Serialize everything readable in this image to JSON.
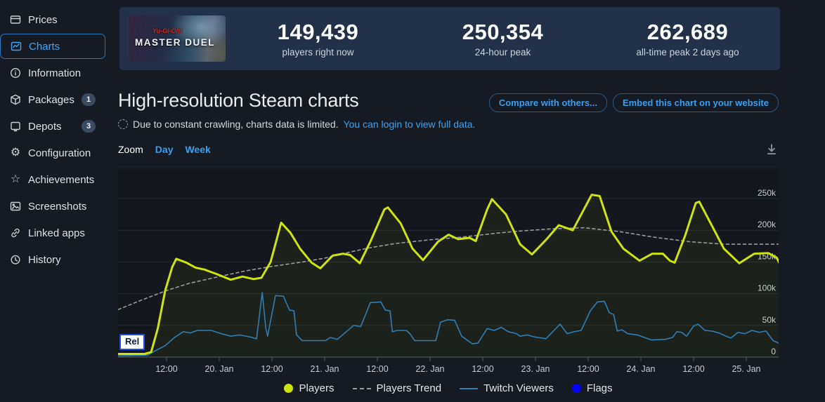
{
  "sidebar": {
    "items": [
      {
        "label": "Prices",
        "icon": "card-icon"
      },
      {
        "label": "Charts",
        "icon": "line-chart-icon",
        "selected": true
      },
      {
        "label": "Information",
        "icon": "info-icon"
      },
      {
        "label": "Packages",
        "icon": "package-icon",
        "badge": "1"
      },
      {
        "label": "Depots",
        "icon": "depot-icon",
        "badge": "3"
      },
      {
        "label": "Configuration",
        "icon": "gear-icon"
      },
      {
        "label": "Achievements",
        "icon": "star-icon"
      },
      {
        "label": "Screenshots",
        "icon": "image-icon"
      },
      {
        "label": "Linked apps",
        "icon": "link-icon"
      },
      {
        "label": "History",
        "icon": "history-icon"
      }
    ]
  },
  "statsbar": {
    "capsule": {
      "franchise": "Yu-Gi-Oh!",
      "title": "MASTER DUEL"
    },
    "stats": [
      {
        "value": "149,439",
        "label": "players right now"
      },
      {
        "value": "250,354",
        "label": "24-hour peak"
      },
      {
        "value": "262,689",
        "label": "all-time peak 2 days ago"
      }
    ]
  },
  "header": {
    "title": "High-resolution Steam charts",
    "buttons": [
      {
        "label": "Compare with others..."
      },
      {
        "label": "Embed this chart on your website"
      }
    ]
  },
  "notice": {
    "text": "Due to constant crawling, charts data is limited.",
    "link": "You can login to view full data."
  },
  "zoombar": {
    "label": "Zoom",
    "options": [
      {
        "label": "Day"
      },
      {
        "label": "Week"
      }
    ]
  },
  "colors": {
    "accent_link": "#36a0f2",
    "players": "#cee40f",
    "players_trend": "#9b9b9b",
    "twitch": "#2f7db3",
    "flags": "#0404fc",
    "statsbar_bg": "#223147",
    "page_bg": "#161a22",
    "plot_bg": "#14171d"
  },
  "chart_data": {
    "type": "line",
    "title": "High-resolution Steam charts",
    "x_unit": "hours (h) since 19. Jan 00:00, chart spans ~19. Jan 02:00 to 25. Jan 15:00",
    "values_unit": "thousands (k)",
    "ylim": [
      0,
      275
    ],
    "grid": true,
    "legend_position": "bottom",
    "x_ticks": [
      {
        "h": 12,
        "label": "12:00"
      },
      {
        "h": 24,
        "label": "20. Jan"
      },
      {
        "h": 36,
        "label": "12:00"
      },
      {
        "h": 48,
        "label": "21. Jan"
      },
      {
        "h": 60,
        "label": "12:00"
      },
      {
        "h": 72,
        "label": "22. Jan"
      },
      {
        "h": 84,
        "label": "12:00"
      },
      {
        "h": 96,
        "label": "23. Jan"
      },
      {
        "h": 108,
        "label": "12:00"
      },
      {
        "h": 120,
        "label": "24. Jan"
      },
      {
        "h": 132,
        "label": "12:00"
      },
      {
        "h": 144,
        "label": "25. Jan"
      }
    ],
    "y_ticks": [
      {
        "v": 0,
        "label": "0"
      },
      {
        "v": 50,
        "label": "50k"
      },
      {
        "v": 100,
        "label": "100k"
      },
      {
        "v": 150,
        "label": "150k"
      },
      {
        "v": 200,
        "label": "200k"
      },
      {
        "v": 250,
        "label": "250k"
      }
    ],
    "series": [
      {
        "name": "Players",
        "color": "#cee40f",
        "width": 3,
        "dash": null,
        "fill": "rgba(206,228,16,0.05)",
        "points": [
          [
            1,
            5
          ],
          [
            4,
            5
          ],
          [
            7,
            5
          ],
          [
            8.5,
            8
          ],
          [
            10,
            45
          ],
          [
            11.7,
            105
          ],
          [
            13.3,
            142
          ],
          [
            14.2,
            155
          ],
          [
            16.5,
            149
          ],
          [
            18.6,
            141
          ],
          [
            20.6,
            138
          ],
          [
            23.4,
            131
          ],
          [
            26.6,
            122
          ],
          [
            29.3,
            127
          ],
          [
            31.8,
            123
          ],
          [
            33.6,
            125
          ],
          [
            35.7,
            150
          ],
          [
            38.1,
            212
          ],
          [
            40.2,
            196
          ],
          [
            42.4,
            171
          ],
          [
            45,
            149
          ],
          [
            47,
            140
          ],
          [
            49.8,
            160
          ],
          [
            52.2,
            163
          ],
          [
            53.8,
            161
          ],
          [
            56,
            148
          ],
          [
            58.4,
            182
          ],
          [
            61.6,
            233
          ],
          [
            62.4,
            236
          ],
          [
            65.3,
            211
          ],
          [
            68,
            171
          ],
          [
            70.4,
            153
          ],
          [
            73.8,
            182
          ],
          [
            76.2,
            193
          ],
          [
            78.4,
            186
          ],
          [
            81,
            188
          ],
          [
            82.4,
            183
          ],
          [
            85,
            233
          ],
          [
            86.1,
            249
          ],
          [
            89.3,
            225
          ],
          [
            92.5,
            178
          ],
          [
            95.2,
            162
          ],
          [
            98.4,
            185
          ],
          [
            101.3,
            208
          ],
          [
            104.5,
            200
          ],
          [
            108.8,
            256
          ],
          [
            110.6,
            254
          ],
          [
            113.3,
            198
          ],
          [
            116,
            171
          ],
          [
            119.7,
            152
          ],
          [
            122.6,
            163
          ],
          [
            125,
            163
          ],
          [
            126.6,
            152
          ],
          [
            127.7,
            149
          ],
          [
            130,
            190
          ],
          [
            132.5,
            243
          ],
          [
            133.3,
            245
          ],
          [
            136.2,
            207
          ],
          [
            138.9,
            171
          ],
          [
            142.4,
            148
          ],
          [
            145.8,
            163
          ],
          [
            149,
            164
          ],
          [
            150.9,
            157
          ],
          [
            151.7,
            146
          ]
        ]
      },
      {
        "name": "Players Trend",
        "color": "#9b9b9b",
        "width": 1.6,
        "dash": "4 4",
        "fill": null,
        "points": [
          [
            1,
            75
          ],
          [
            6,
            89
          ],
          [
            12,
            105
          ],
          [
            17,
            116
          ],
          [
            24,
            127
          ],
          [
            30,
            136
          ],
          [
            36,
            143
          ],
          [
            43,
            150
          ],
          [
            48,
            156
          ],
          [
            54,
            166
          ],
          [
            58,
            172
          ],
          [
            64,
            179
          ],
          [
            72,
            185
          ],
          [
            79,
            189
          ],
          [
            88,
            196
          ],
          [
            93,
            199
          ],
          [
            99,
            202
          ],
          [
            107,
            204
          ],
          [
            115,
            198
          ],
          [
            123,
            189
          ],
          [
            131,
            182
          ],
          [
            139,
            178
          ],
          [
            147,
            178
          ],
          [
            151.7,
            178
          ]
        ]
      },
      {
        "name": "Twitch Viewers",
        "color": "#2f7db3",
        "width": 1.6,
        "dash": null,
        "fill": null,
        "points": [
          [
            1,
            2
          ],
          [
            7.7,
            3
          ],
          [
            9.4,
            10
          ],
          [
            11.7,
            18
          ],
          [
            13.8,
            31
          ],
          [
            15.8,
            40
          ],
          [
            17.4,
            38
          ],
          [
            19,
            42
          ],
          [
            22.2,
            42
          ],
          [
            24.5,
            37
          ],
          [
            26.6,
            33
          ],
          [
            28.6,
            35
          ],
          [
            30.9,
            32
          ],
          [
            32.5,
            29
          ],
          [
            33.8,
            102
          ],
          [
            34.6,
            45
          ],
          [
            35,
            33
          ],
          [
            36.8,
            97
          ],
          [
            38.6,
            96
          ],
          [
            40,
            74
          ],
          [
            41,
            73
          ],
          [
            41.6,
            35
          ],
          [
            42.9,
            26
          ],
          [
            45.3,
            26
          ],
          [
            48.2,
            26
          ],
          [
            49.3,
            31
          ],
          [
            50.9,
            28
          ],
          [
            54.6,
            50
          ],
          [
            56.2,
            48
          ],
          [
            58.4,
            86
          ],
          [
            60.8,
            87
          ],
          [
            61.8,
            74
          ],
          [
            62.9,
            73
          ],
          [
            63.4,
            40
          ],
          [
            64.5,
            42
          ],
          [
            66.6,
            42
          ],
          [
            67.4,
            37
          ],
          [
            68.5,
            26
          ],
          [
            73.3,
            26
          ],
          [
            74.4,
            55
          ],
          [
            76,
            59
          ],
          [
            77.6,
            58
          ],
          [
            79.2,
            33
          ],
          [
            81.6,
            21
          ],
          [
            82.9,
            22
          ],
          [
            85,
            45
          ],
          [
            86.6,
            42
          ],
          [
            88.2,
            47
          ],
          [
            89.8,
            40
          ],
          [
            91.7,
            37
          ],
          [
            92.5,
            33
          ],
          [
            94.1,
            35
          ],
          [
            95.7,
            32
          ],
          [
            98.4,
            29
          ],
          [
            101.6,
            52
          ],
          [
            103.2,
            37
          ],
          [
            104.8,
            40
          ],
          [
            106.4,
            42
          ],
          [
            108.5,
            73
          ],
          [
            110.1,
            87
          ],
          [
            111.7,
            88
          ],
          [
            112.8,
            70
          ],
          [
            113.8,
            67
          ],
          [
            114.6,
            41
          ],
          [
            115.7,
            43
          ],
          [
            117,
            37
          ],
          [
            119.2,
            35
          ],
          [
            120.8,
            31
          ],
          [
            122.4,
            27
          ],
          [
            125.6,
            28
          ],
          [
            127.2,
            31
          ],
          [
            128.2,
            40
          ],
          [
            129.3,
            39
          ],
          [
            130.4,
            33
          ],
          [
            132,
            49
          ],
          [
            133,
            52
          ],
          [
            134.6,
            42
          ],
          [
            136.2,
            41
          ],
          [
            137.8,
            38
          ],
          [
            139.4,
            33
          ],
          [
            140.5,
            30
          ],
          [
            142.1,
            39
          ],
          [
            143.7,
            37
          ],
          [
            145.3,
            42
          ],
          [
            146.9,
            39
          ],
          [
            148.5,
            41
          ],
          [
            150.1,
            26
          ],
          [
            151.7,
            21
          ]
        ]
      }
    ],
    "flags": [
      {
        "label": "Rel",
        "h": 0.5
      }
    ],
    "legend": [
      {
        "label": "Players",
        "marker": "circle",
        "color": "#cee40f"
      },
      {
        "label": "Players Trend",
        "marker": "dash",
        "color": "#9b9b9b"
      },
      {
        "label": "Twitch Viewers",
        "marker": "line",
        "color": "#2f7db3"
      },
      {
        "label": "Flags",
        "marker": "circle",
        "color": "#0404fc"
      }
    ]
  }
}
